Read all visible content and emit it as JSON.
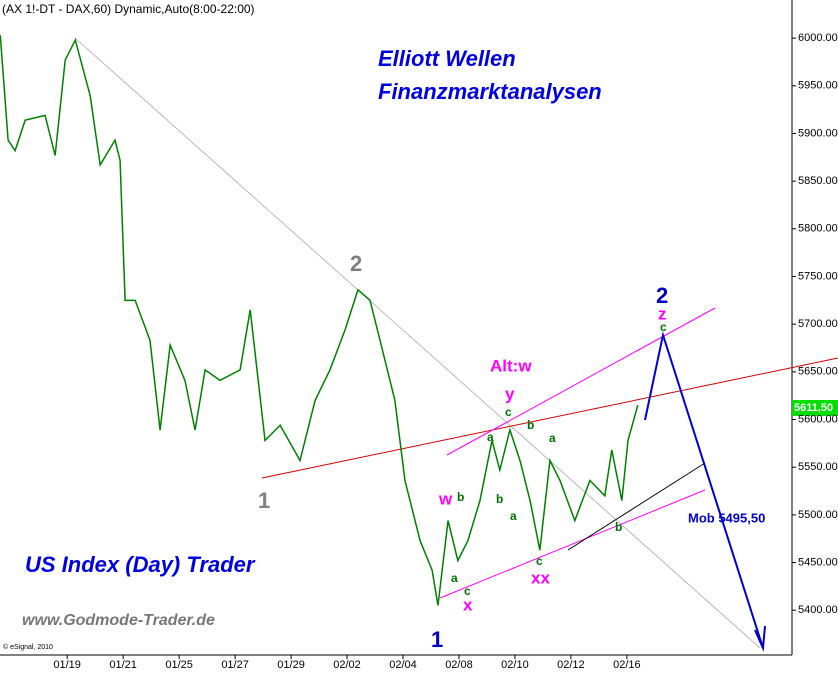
{
  "chart_data": {
    "type": "line",
    "title": "(AX 1!-DT - DAX,60) Dynamic,Auto(8:00-22:00)",
    "last_price_label": "5611,50",
    "annotations": [
      "Elliott Wellen",
      "Finanzmarktanalysen",
      "US Index (Day) Trader",
      "www.Godmode-Trader.de",
      "© eSignal, 2010",
      "2",
      "1",
      "Alt:w",
      "y",
      "c",
      "a",
      "b",
      "a",
      "b",
      "a",
      "w",
      "b",
      "a",
      "c",
      "x",
      "1",
      "c",
      "xx",
      "b",
      "2",
      "z",
      "c",
      "Mob 5495,50"
    ],
    "x": [
      -2.39,
      -2.11,
      -1.86,
      -1.5,
      -0.79,
      -0.43,
      -0.07,
      0.29,
      0.82,
      1.18,
      1.71,
      1.89,
      2.07,
      2.43,
      2.96,
      3.32,
      3.68,
      4.21,
      4.57,
      4.93,
      5.46,
      6.18,
      6.54,
      7.07,
      7.61,
      8.32,
      8.86,
      9.39,
      9.93,
      10.39,
      10.82,
      11.18,
      11.71,
      12.07,
      12.61,
      13.04,
      13.25,
      13.61,
      13.96,
      14.32,
      14.75,
      15.18,
      15.46,
      15.82,
      16.18,
      16.54,
      16.89,
      17.25,
      17.61,
      18.14,
      18.68,
      19.21,
      19.46,
      19.82,
      20.04,
      20.39
    ],
    "series": [
      {
        "name": "DAX",
        "color": "#008000",
        "values": [
          6003,
          5893,
          5882,
          5914,
          5919,
          5877,
          5977,
          5998,
          5940,
          5867,
          5893,
          5872,
          5725,
          5725,
          5683,
          5589,
          5678,
          5641,
          5589,
          5652,
          5641,
          5652,
          5715,
          5578,
          5594,
          5557,
          5620,
          5652,
          5694,
          5736,
          5725,
          5683,
          5620,
          5536,
          5473,
          5442,
          5405,
          5494,
          5452,
          5473,
          5515,
          5578,
          5547,
          5589,
          5557,
          5515,
          5463,
          5557,
          5536,
          5494,
          5536,
          5520,
          5568,
          5515,
          5578,
          5615
        ]
      }
    ],
    "xlim": [
      -2.4,
      25.9
    ],
    "xticks": [
      {
        "value": 0,
        "label": "01/19"
      },
      {
        "value": 2,
        "label": "01/21"
      },
      {
        "value": 4,
        "label": "01/25"
      },
      {
        "value": 6,
        "label": "01/27"
      },
      {
        "value": 8,
        "label": "01/29"
      },
      {
        "value": 10,
        "label": "02/02"
      },
      {
        "value": 12,
        "label": "02/04"
      },
      {
        "value": 14,
        "label": "02/08"
      },
      {
        "value": 16,
        "label": "02/10"
      },
      {
        "value": 18,
        "label": "02/12"
      },
      {
        "value": 20,
        "label": "02/16"
      }
    ],
    "ylim": [
      5353,
      6040
    ],
    "yticks": [
      {
        "value": 5400,
        "label": "5400.00"
      },
      {
        "value": 5450,
        "label": "5450.00"
      },
      {
        "value": 5500,
        "label": "5500.00"
      },
      {
        "value": 5550,
        "label": "5550.00"
      },
      {
        "value": 5600,
        "label": "5600.00"
      },
      {
        "value": 5650,
        "label": "5650.00"
      },
      {
        "value": 5700,
        "label": "5700.00"
      },
      {
        "value": 5750,
        "label": "5750.00"
      },
      {
        "value": 5800,
        "label": "5800.00"
      },
      {
        "value": 5850,
        "label": "5850.00"
      },
      {
        "value": 5900,
        "label": "5900.00"
      },
      {
        "value": 5950,
        "label": "5950.00"
      },
      {
        "value": 6000,
        "label": "6000.00"
      }
    ]
  }
}
